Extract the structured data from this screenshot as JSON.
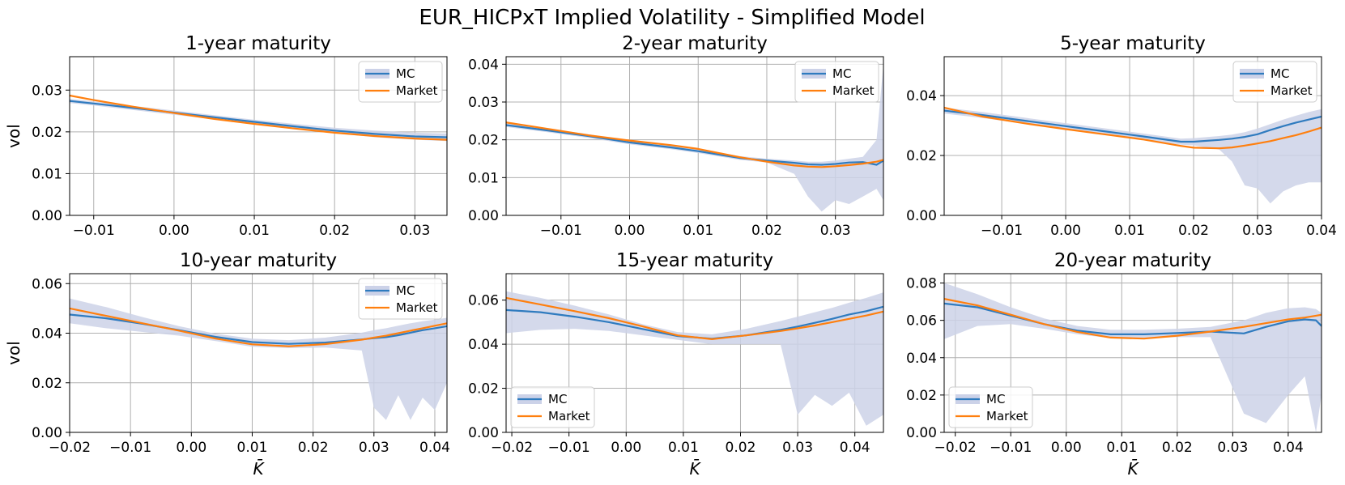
{
  "figure_title": "EUR_HICPxT Implied Volatility - Simplified Model",
  "colors": {
    "mc": "#2f7bbf",
    "market": "#ff7f0e",
    "band": "#ccd2e8",
    "grid": "#b0b0b0"
  },
  "legend_labels": [
    "MC",
    "Market"
  ],
  "chart_data": [
    {
      "type": "line",
      "title": "1-year maturity",
      "ylabel": "vol",
      "xlabel": "",
      "xlim": [
        -0.013,
        0.034
      ],
      "ylim": [
        0,
        0.038
      ],
      "xticks": [
        -0.01,
        0.0,
        0.01,
        0.02,
        0.03
      ],
      "xtick_labels": [
        "−0.01",
        "0.00",
        "0.01",
        "0.02",
        "0.03"
      ],
      "yticks": [
        0,
        0.01,
        0.02,
        0.03
      ],
      "ytick_labels": [
        "0.00",
        "0.01",
        "0.02",
        "0.03"
      ],
      "legend_position": "top-right",
      "x": [
        -0.013,
        -0.01,
        -0.005,
        0.0,
        0.005,
        0.01,
        0.015,
        0.02,
        0.025,
        0.03,
        0.034
      ],
      "series": [
        {
          "name": "MC",
          "values": [
            0.0274,
            0.0268,
            0.0257,
            0.0246,
            0.0235,
            0.0224,
            0.0213,
            0.0203,
            0.0195,
            0.0189,
            0.0187
          ]
        },
        {
          "name": "Market",
          "values": [
            0.0287,
            0.0276,
            0.026,
            0.0245,
            0.0231,
            0.0219,
            0.0208,
            0.0198,
            0.019,
            0.0184,
            0.0181
          ]
        }
      ],
      "band": {
        "upper": [
          0.0279,
          0.0273,
          0.0262,
          0.0251,
          0.024,
          0.0229,
          0.0219,
          0.021,
          0.0203,
          0.0198,
          0.0196
        ],
        "lower": [
          0.0269,
          0.0263,
          0.0252,
          0.0241,
          0.023,
          0.0219,
          0.0208,
          0.0197,
          0.0187,
          0.0181,
          0.0178
        ]
      }
    },
    {
      "type": "line",
      "title": "2-year maturity",
      "ylabel": "",
      "xlabel": "",
      "xlim": [
        -0.018,
        0.037
      ],
      "ylim": [
        0,
        0.042
      ],
      "xticks": [
        -0.01,
        0.0,
        0.01,
        0.02,
        0.03
      ],
      "xtick_labels": [
        "−0.01",
        "0.00",
        "0.01",
        "0.02",
        "0.03"
      ],
      "yticks": [
        0,
        0.01,
        0.02,
        0.03,
        0.04
      ],
      "ytick_labels": [
        "0.00",
        "0.01",
        "0.02",
        "0.03",
        "0.04"
      ],
      "legend_position": "top-right",
      "x": [
        -0.018,
        -0.012,
        -0.006,
        0.0,
        0.006,
        0.01,
        0.016,
        0.02,
        0.024,
        0.026,
        0.028,
        0.03,
        0.032,
        0.034,
        0.036,
        0.037
      ],
      "series": [
        {
          "name": "MC",
          "values": [
            0.0239,
            0.0225,
            0.021,
            0.0193,
            0.018,
            0.017,
            0.0152,
            0.0145,
            0.0139,
            0.0135,
            0.0134,
            0.0136,
            0.014,
            0.0141,
            0.0134,
            0.0145
          ]
        },
        {
          "name": "Market",
          "values": [
            0.0246,
            0.0229,
            0.0212,
            0.0198,
            0.0186,
            0.0176,
            0.0154,
            0.0142,
            0.0132,
            0.0129,
            0.0128,
            0.013,
            0.0133,
            0.0137,
            0.0142,
            0.0147
          ]
        }
      ],
      "band": {
        "upper": [
          0.0244,
          0.023,
          0.0215,
          0.0198,
          0.0185,
          0.0175,
          0.0157,
          0.015,
          0.0145,
          0.0142,
          0.0142,
          0.0145,
          0.015,
          0.0155,
          0.02,
          0.04
        ],
        "lower": [
          0.0234,
          0.022,
          0.0205,
          0.0188,
          0.0175,
          0.0165,
          0.0147,
          0.014,
          0.011,
          0.005,
          0.001,
          0.004,
          0.003,
          0.005,
          0.007,
          0.004
        ]
      }
    },
    {
      "type": "line",
      "title": "5-year maturity",
      "ylabel": "",
      "xlabel": "",
      "xlim": [
        -0.019,
        0.04
      ],
      "ylim": [
        0,
        0.053
      ],
      "xticks": [
        -0.01,
        0.0,
        0.01,
        0.02,
        0.03,
        0.04
      ],
      "xtick_labels": [
        "−0.01",
        "0.00",
        "0.01",
        "0.02",
        "0.03",
        "0.04"
      ],
      "yticks": [
        0,
        0.02,
        0.04
      ],
      "ytick_labels": [
        "0.00",
        "0.02",
        "0.04"
      ],
      "legend_position": "top-right",
      "x": [
        -0.019,
        -0.013,
        -0.006,
        0.0,
        0.006,
        0.012,
        0.018,
        0.02,
        0.024,
        0.026,
        0.028,
        0.03,
        0.032,
        0.034,
        0.036,
        0.038,
        0.04
      ],
      "series": [
        {
          "name": "MC",
          "values": [
            0.035,
            0.0335,
            0.0315,
            0.0298,
            0.0281,
            0.0264,
            0.0246,
            0.0246,
            0.0252,
            0.0256,
            0.0262,
            0.0271,
            0.0285,
            0.0298,
            0.031,
            0.032,
            0.033
          ]
        },
        {
          "name": "Market",
          "values": [
            0.036,
            0.033,
            0.0306,
            0.0288,
            0.0271,
            0.0254,
            0.0232,
            0.0226,
            0.0224,
            0.0227,
            0.0233,
            0.024,
            0.0248,
            0.0258,
            0.0268,
            0.028,
            0.0293
          ]
        }
      ],
      "band": {
        "upper": [
          0.036,
          0.0345,
          0.0325,
          0.0308,
          0.0291,
          0.0274,
          0.0256,
          0.0258,
          0.0265,
          0.027,
          0.0278,
          0.029,
          0.0305,
          0.032,
          0.0333,
          0.0345,
          0.0355
        ],
        "lower": [
          0.034,
          0.0325,
          0.0305,
          0.0288,
          0.0271,
          0.0254,
          0.0236,
          0.0234,
          0.022,
          0.018,
          0.01,
          0.009,
          0.004,
          0.008,
          0.01,
          0.011,
          0.011
        ]
      }
    },
    {
      "type": "line",
      "title": "10-year maturity",
      "ylabel": "vol",
      "xlabel": "K̄",
      "xlim": [
        -0.02,
        0.042
      ],
      "ylim": [
        0,
        0.064
      ],
      "xticks": [
        -0.02,
        -0.01,
        0.0,
        0.01,
        0.02,
        0.03,
        0.04
      ],
      "xtick_labels": [
        "−0.02",
        "−0.01",
        "0.00",
        "0.01",
        "0.02",
        "0.03",
        "0.04"
      ],
      "yticks": [
        0,
        0.02,
        0.04,
        0.06
      ],
      "ytick_labels": [
        "0.00",
        "0.02",
        "0.04",
        "0.06"
      ],
      "legend_position": "top-right",
      "x": [
        -0.02,
        -0.014,
        -0.008,
        -0.002,
        0.004,
        0.01,
        0.016,
        0.022,
        0.028,
        0.03,
        0.032,
        0.034,
        0.036,
        0.038,
        0.04,
        0.042
      ],
      "series": [
        {
          "name": "MC",
          "values": [
            0.0475,
            0.046,
            0.0438,
            0.0412,
            0.0385,
            0.0364,
            0.0357,
            0.0362,
            0.0375,
            0.038,
            0.0384,
            0.0392,
            0.0402,
            0.0412,
            0.042,
            0.0428
          ]
        },
        {
          "name": "Market",
          "values": [
            0.05,
            0.047,
            0.044,
            0.041,
            0.0378,
            0.0355,
            0.0347,
            0.0356,
            0.0374,
            0.0382,
            0.039,
            0.04,
            0.041,
            0.042,
            0.043,
            0.044
          ]
        }
      ],
      "band": {
        "upper": [
          0.054,
          0.0505,
          0.0465,
          0.0428,
          0.0398,
          0.0378,
          0.0372,
          0.0382,
          0.0402,
          0.0412,
          0.042,
          0.043,
          0.044,
          0.0448,
          0.0455,
          0.0462
        ],
        "lower": [
          0.044,
          0.042,
          0.0405,
          0.039,
          0.0368,
          0.0345,
          0.034,
          0.0342,
          0.033,
          0.01,
          0.005,
          0.015,
          0.005,
          0.014,
          0.009,
          0.02
        ]
      }
    },
    {
      "type": "line",
      "title": "15-year maturity",
      "ylabel": "",
      "xlabel": "K̄",
      "xlim": [
        -0.021,
        0.045
      ],
      "ylim": [
        0,
        0.072
      ],
      "xticks": [
        -0.02,
        -0.01,
        0.0,
        0.01,
        0.02,
        0.03,
        0.04
      ],
      "xtick_labels": [
        "−0.02",
        "−0.01",
        "0.00",
        "0.01",
        "0.02",
        "0.03",
        "0.04"
      ],
      "yticks": [
        0,
        0.02,
        0.04,
        0.06
      ],
      "ytick_labels": [
        "0.00",
        "0.02",
        "0.04",
        "0.06"
      ],
      "legend_position": "bottom-left",
      "x": [
        -0.021,
        -0.015,
        -0.009,
        -0.003,
        0.003,
        0.009,
        0.015,
        0.021,
        0.027,
        0.03,
        0.033,
        0.036,
        0.039,
        0.042,
        0.045
      ],
      "series": [
        {
          "name": "MC",
          "values": [
            0.0555,
            0.0545,
            0.0525,
            0.05,
            0.0468,
            0.0437,
            0.0425,
            0.044,
            0.0465,
            0.048,
            0.0497,
            0.0515,
            0.0535,
            0.055,
            0.057
          ]
        },
        {
          "name": "Market",
          "values": [
            0.061,
            0.058,
            0.055,
            0.0518,
            0.048,
            0.044,
            0.0423,
            0.044,
            0.046,
            0.0472,
            0.0485,
            0.05,
            0.0515,
            0.053,
            0.0548
          ]
        }
      ],
      "band": {
        "upper": [
          0.064,
          0.061,
          0.0575,
          0.0535,
          0.049,
          0.0455,
          0.0445,
          0.047,
          0.0505,
          0.0525,
          0.0545,
          0.0565,
          0.0588,
          0.061,
          0.0635
        ],
        "lower": [
          0.045,
          0.0465,
          0.047,
          0.046,
          0.044,
          0.042,
          0.04,
          0.04,
          0.04,
          0.008,
          0.017,
          0.012,
          0.018,
          0.003,
          0.008
        ]
      }
    },
    {
      "type": "line",
      "title": "20-year maturity",
      "ylabel": "",
      "xlabel": "K̄",
      "xlim": [
        -0.022,
        0.046
      ],
      "ylim": [
        0,
        0.085
      ],
      "xticks": [
        -0.02,
        -0.01,
        0.0,
        0.01,
        0.02,
        0.03,
        0.04
      ],
      "xtick_labels": [
        "−0.02",
        "−0.01",
        "0.00",
        "0.01",
        "0.02",
        "0.03",
        "0.04"
      ],
      "yticks": [
        0,
        0.02,
        0.04,
        0.06,
        0.08
      ],
      "ytick_labels": [
        "0.00",
        "0.02",
        "0.04",
        "0.06",
        "0.08"
      ],
      "legend_position": "bottom-left",
      "x": [
        -0.022,
        -0.016,
        -0.01,
        -0.004,
        0.002,
        0.008,
        0.014,
        0.02,
        0.026,
        0.032,
        0.036,
        0.04,
        0.043,
        0.045,
        0.046
      ],
      "series": [
        {
          "name": "MC",
          "values": [
            0.069,
            0.067,
            0.0625,
            0.058,
            0.0545,
            0.0525,
            0.0525,
            0.0532,
            0.054,
            0.053,
            0.0565,
            0.0595,
            0.0605,
            0.06,
            0.057
          ]
        },
        {
          "name": "Market",
          "values": [
            0.0715,
            0.068,
            0.063,
            0.058,
            0.0538,
            0.0508,
            0.0502,
            0.0518,
            0.054,
            0.0565,
            0.0585,
            0.0605,
            0.0615,
            0.0625,
            0.063
          ]
        }
      ],
      "band": {
        "upper": [
          0.08,
          0.074,
          0.067,
          0.061,
          0.057,
          0.055,
          0.055,
          0.0555,
          0.0565,
          0.06,
          0.064,
          0.0665,
          0.067,
          0.066,
          0.064
        ],
        "lower": [
          0.05,
          0.057,
          0.058,
          0.0555,
          0.0525,
          0.0505,
          0.0505,
          0.051,
          0.051,
          0.01,
          0.005,
          0.02,
          0.03,
          0.0,
          0.02
        ]
      }
    }
  ]
}
